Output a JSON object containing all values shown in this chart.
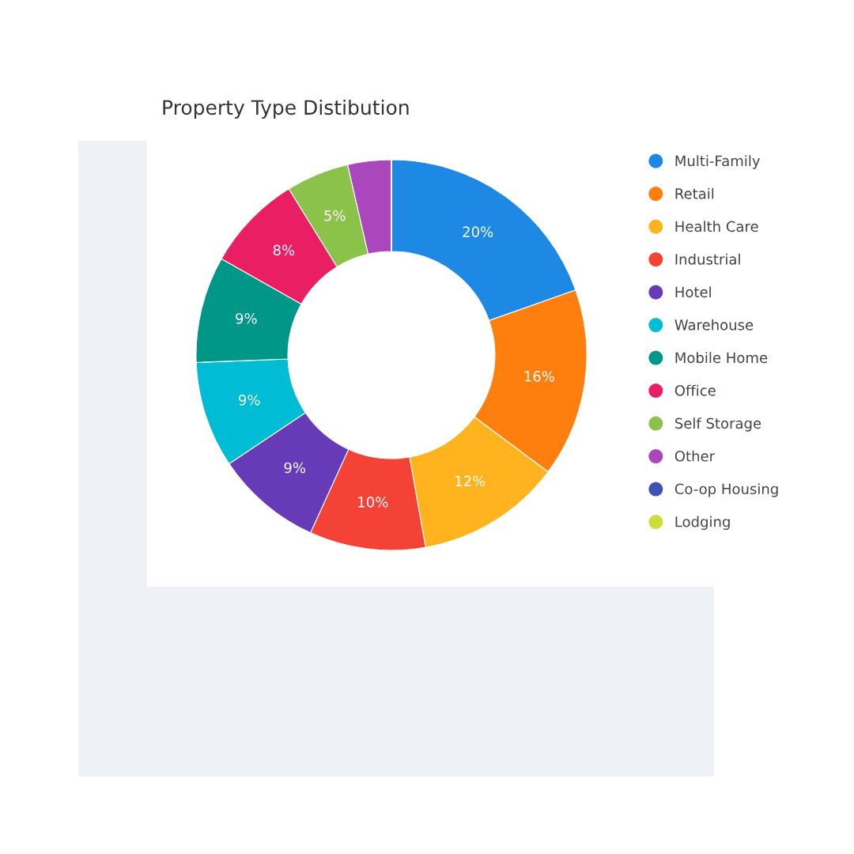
{
  "chart_data": {
    "type": "donut",
    "title": "Property Type Distibution",
    "categories": [
      "Multi-Family",
      "Retail",
      "Health Care",
      "Industrial",
      "Hotel",
      "Warehouse",
      "Mobile Home",
      "Office",
      "Self Storage",
      "Other",
      "Co-op Housing",
      "Lodging"
    ],
    "values": [
      19.6,
      15.6,
      12.0,
      9.6,
      8.8,
      8.8,
      8.8,
      8.0,
      5.2,
      3.6,
      0,
      0
    ],
    "value_labels": [
      "20%",
      "16%",
      "12%",
      "10%",
      "9%",
      "9%",
      "9%",
      "8%",
      "5%",
      null,
      null,
      null
    ],
    "colors": [
      "#1e88e5",
      "#ff7f0e",
      "#ffb41f",
      "#f44336",
      "#673ab7",
      "#00bcd4",
      "#009688",
      "#e91e63",
      "#8bc34a",
      "#ab47bc",
      "#3f51b5",
      "#cddc39"
    ],
    "legend": "right"
  }
}
